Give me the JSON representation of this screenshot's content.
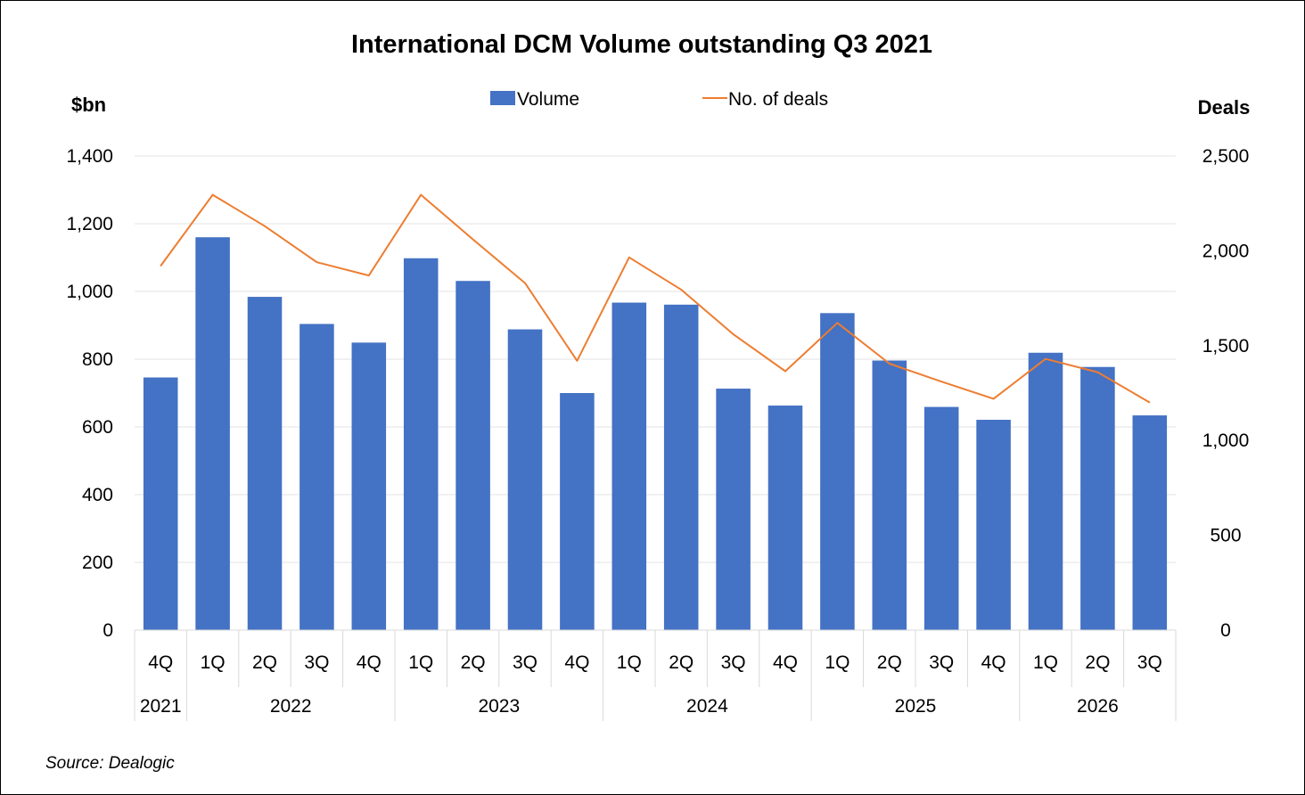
{
  "chart_data": {
    "type": "bar",
    "title": "International DCM Volume outstanding Q3 2021",
    "y_left_label": "$bn",
    "y_right_label": "Deals",
    "ylim_left": [
      0,
      1400
    ],
    "ylim_right": [
      0,
      2500
    ],
    "y_left_ticks": [
      "0",
      "200",
      "400",
      "600",
      "800",
      "1,000",
      "1,200",
      "1,400"
    ],
    "y_right_ticks": [
      "0",
      "500",
      "1,000",
      "1,500",
      "2,000",
      "2,500"
    ],
    "grid": true,
    "legend_position": "top-center",
    "categories": [
      "4Q",
      "1Q",
      "2Q",
      "3Q",
      "4Q",
      "1Q",
      "2Q",
      "3Q",
      "4Q",
      "1Q",
      "2Q",
      "3Q",
      "4Q",
      "1Q",
      "2Q",
      "3Q",
      "4Q",
      "1Q",
      "2Q",
      "3Q"
    ],
    "year_groups": [
      {
        "label": "2021",
        "count": 1
      },
      {
        "label": "2022",
        "count": 4
      },
      {
        "label": "2023",
        "count": 4
      },
      {
        "label": "2024",
        "count": 4
      },
      {
        "label": "2025",
        "count": 4
      },
      {
        "label": "2026",
        "count": 3
      }
    ],
    "series": [
      {
        "name": "Volume",
        "type": "bar",
        "axis": "left",
        "color": "#4472C4",
        "values": [
          746,
          1160,
          984,
          904,
          849,
          1098,
          1031,
          888,
          700,
          967,
          961,
          713,
          663,
          936,
          796,
          659,
          621,
          819,
          777,
          634
        ]
      },
      {
        "name": "No. of deals",
        "type": "line",
        "axis": "right",
        "color": "#ED7D31",
        "values": [
          1920,
          2295,
          2130,
          1940,
          1870,
          2295,
          2060,
          1830,
          1420,
          1965,
          1795,
          1560,
          1365,
          1620,
          1405,
          1310,
          1220,
          1430,
          1360,
          1200
        ]
      }
    ],
    "source": "Source: Dealogic"
  }
}
